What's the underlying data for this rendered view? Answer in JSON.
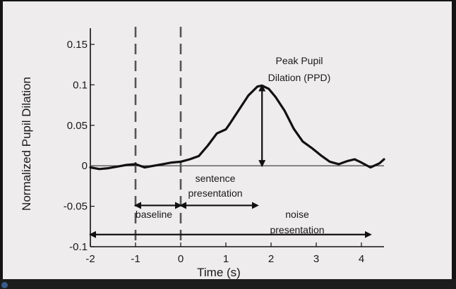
{
  "chart_data": {
    "type": "line",
    "title": "",
    "xlabel": "Time (s)",
    "ylabel": "Normalized Pupil Dilation",
    "xlim": [
      -2,
      4.5
    ],
    "ylim": [
      -0.1,
      0.17
    ],
    "xticks": [
      -2,
      -1,
      0,
      1,
      2,
      3,
      4
    ],
    "xtick_labels": [
      "-2",
      "-1",
      "0",
      "1",
      "2",
      "3",
      "4"
    ],
    "yticks": [
      -0.1,
      -0.05,
      0,
      0.05,
      0.1,
      0.15
    ],
    "ytick_labels": [
      "-0.1",
      "-0.05",
      "0",
      "0.05",
      "0.1",
      "0.15"
    ],
    "grid": false,
    "legend": "none",
    "colors": {
      "line": "#111111",
      "background": "#eeecec",
      "frame": "#111111"
    },
    "series": [
      {
        "x": [
          -2.0,
          -1.8,
          -1.6,
          -1.4,
          -1.2,
          -1.0,
          -0.8,
          -0.6,
          -0.4,
          -0.2,
          0.0,
          0.2,
          0.4,
          0.6,
          0.8,
          1.0,
          1.1,
          1.3,
          1.5,
          1.7,
          1.8,
          1.95,
          2.1,
          2.3,
          2.5,
          2.7,
          2.9,
          3.1,
          3.3,
          3.5,
          3.7,
          3.85,
          4.0,
          4.2,
          4.4,
          4.5
        ],
        "y": [
          -0.002,
          -0.004,
          -0.003,
          -0.001,
          0.001,
          0.002,
          -0.002,
          0.0,
          0.002,
          0.004,
          0.005,
          0.008,
          0.012,
          0.025,
          0.04,
          0.045,
          0.053,
          0.07,
          0.087,
          0.098,
          0.099,
          0.095,
          0.085,
          0.068,
          0.046,
          0.03,
          0.022,
          0.013,
          0.005,
          0.002,
          0.006,
          0.008,
          0.004,
          -0.002,
          0.003,
          0.008
        ]
      }
    ],
    "vlines": [
      {
        "x": -1,
        "style": "dashed"
      },
      {
        "x": 0,
        "style": "dashed"
      }
    ],
    "hline": {
      "y": 0
    },
    "annotations": {
      "ppd_label_line1": "Peak Pupil",
      "ppd_label_line2": "Dilation (PPD)",
      "sentence_label_line1": "sentence",
      "sentence_label_line2": "presentation",
      "baseline_label": "baseline",
      "noise_label_line1": "noise",
      "noise_label_line2": "presentation",
      "ppd_arrow": {
        "x": 1.8,
        "y_from": 0.0,
        "y_to": 0.099
      },
      "baseline_arrow": {
        "x_from": -1,
        "x_to": 0,
        "y": -0.049
      },
      "sentence_arrow": {
        "x_from": 0.0,
        "x_to": 1.7,
        "y": -0.049
      },
      "noise_arrow": {
        "x_from": -2,
        "x_to": 4.2,
        "y": -0.085
      }
    }
  }
}
